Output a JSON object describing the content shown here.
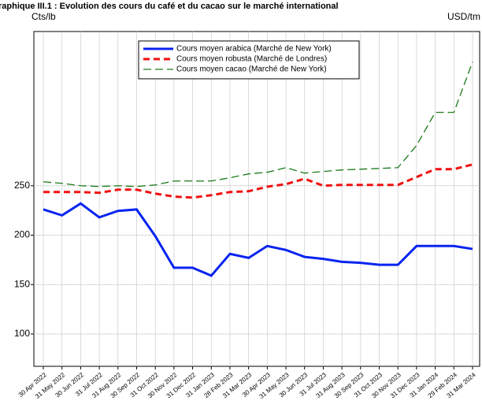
{
  "chart_data": {
    "type": "line",
    "title": "raphique III.1 : Evolution des cours du café et du cacao sur le marché international",
    "y_label": "Cts/lb",
    "y2_label": "USD/tm",
    "categories": [
      "30 Apr 2022",
      "31 May 2022",
      "30 Jun 2022",
      "31 Jul 2022",
      "31 Aug 2022",
      "30 Sep 2022",
      "31 Oct 2022",
      "30 Nov 2022",
      "31 Dec 2022",
      "31 Jan 2023",
      "28 Feb 2023",
      "31 Mar 2023",
      "30 Apr 2023",
      "31 May 2023",
      "30 Jun 2023",
      "31 Jul 2023",
      "31 Aug 2023",
      "30 Sep 2023",
      "31 Oct 2023",
      "30 Nov 2023",
      "31 Dec 2023",
      "31 Jan 2024",
      "29 Feb 2024",
      "31 Mar 2024"
    ],
    "series": [
      {
        "name": "Cours moyen arabica (Marché de New York)",
        "color": "#0a24f0",
        "width": 3,
        "dash": "",
        "values": [
          226,
          220,
          232,
          218,
          224.5,
          226,
          199,
          167,
          167,
          159,
          181,
          177,
          189,
          185,
          178,
          176,
          173,
          172,
          170,
          170,
          189,
          189,
          189,
          186
        ]
      },
      {
        "name": "Cours moyen robusta (Marché de Londres)",
        "color": "#f01010",
        "width": 3,
        "dash": "8 5",
        "values": [
          243.6,
          243.6,
          243.6,
          242.8,
          246,
          246,
          242,
          239,
          238,
          240.4,
          243.6,
          244.4,
          249,
          251.6,
          257,
          250,
          250.8,
          250.8,
          250.8,
          250.8,
          258.8,
          266.7,
          266.7,
          271.5
        ]
      },
      {
        "name": "Cours moyen cacao (Marché de New York)",
        "color": "#1a7a1a",
        "width": 1.3,
        "dash": "10 5",
        "values": [
          254,
          252.4,
          250,
          249.2,
          250,
          249.2,
          250.8,
          254.8,
          254.8,
          254.8,
          258,
          262,
          263.6,
          268.3,
          262.8,
          264.4,
          266,
          266.7,
          267.5,
          268.3,
          290.7,
          324.2,
          324.2,
          375.2
        ]
      }
    ],
    "ylim": [
      67.3,
      406
    ],
    "yticks": [
      100,
      150,
      200,
      250
    ],
    "grid": true,
    "legend": "top"
  }
}
